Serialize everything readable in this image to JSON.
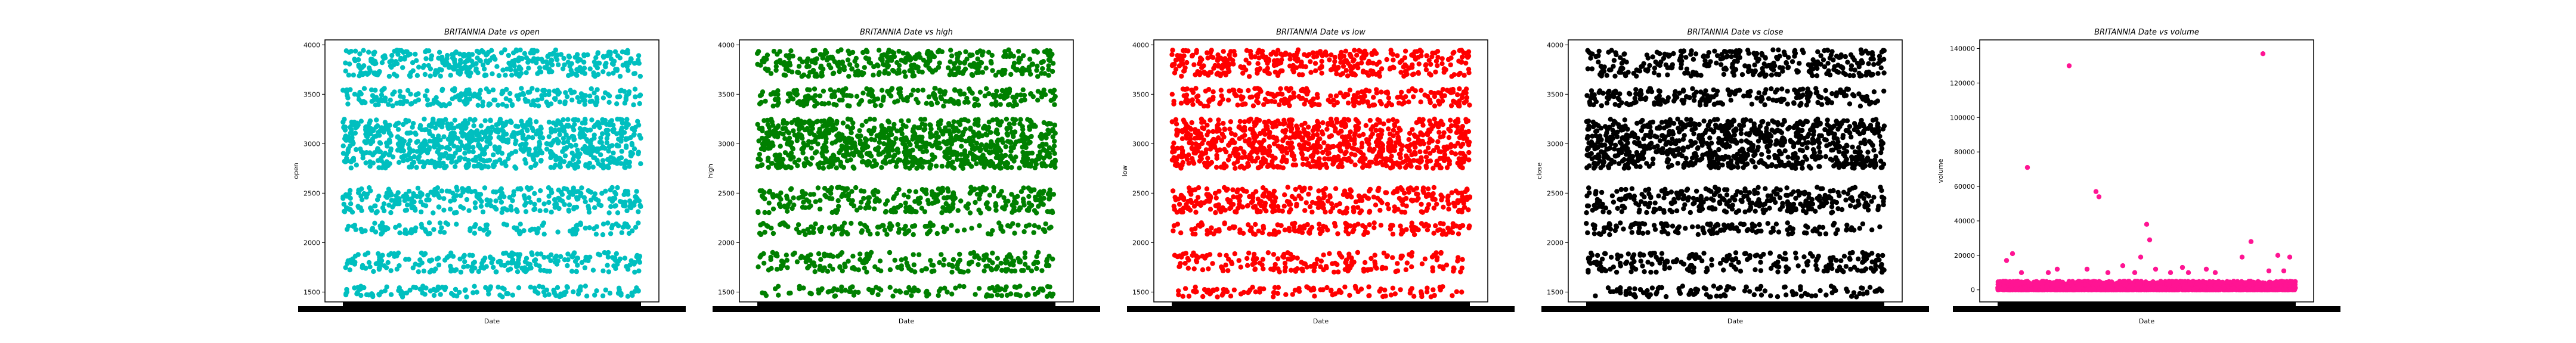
{
  "figure": {
    "stock": "BRITANNIA",
    "marker_color_note": "per panel"
  },
  "chart_data": [
    {
      "type": "scatter",
      "title": "BRITANNIA Date vs open",
      "xlabel": "Date",
      "ylabel": "open",
      "ylim": [
        1400,
        4050
      ],
      "yticks": [
        1500,
        2000,
        2500,
        3000,
        3500,
        4000
      ],
      "color": "#00bfbf",
      "n_points": 2200,
      "x_note": "dates (categorical, unlabeled)",
      "bands": [
        {
          "min": 1450,
          "max": 1560,
          "weight": 0.05
        },
        {
          "min": 1700,
          "max": 1900,
          "weight": 0.1
        },
        {
          "min": 2080,
          "max": 2200,
          "weight": 0.06
        },
        {
          "min": 2300,
          "max": 2560,
          "weight": 0.15
        },
        {
          "min": 2750,
          "max": 3250,
          "weight": 0.38
        },
        {
          "min": 3380,
          "max": 3560,
          "weight": 0.1
        },
        {
          "min": 3680,
          "max": 3950,
          "weight": 0.16
        }
      ]
    },
    {
      "type": "scatter",
      "title": "BRITANNIA Date vs high",
      "xlabel": "Date",
      "ylabel": "high",
      "ylim": [
        1400,
        4050
      ],
      "yticks": [
        1500,
        2000,
        2500,
        3000,
        3500,
        4000
      ],
      "color": "#008000",
      "n_points": 2200,
      "x_note": "dates (categorical, unlabeled)",
      "bands": [
        {
          "min": 1450,
          "max": 1560,
          "weight": 0.05
        },
        {
          "min": 1700,
          "max": 1900,
          "weight": 0.1
        },
        {
          "min": 2080,
          "max": 2200,
          "weight": 0.06
        },
        {
          "min": 2300,
          "max": 2560,
          "weight": 0.15
        },
        {
          "min": 2750,
          "max": 3250,
          "weight": 0.38
        },
        {
          "min": 3380,
          "max": 3560,
          "weight": 0.1
        },
        {
          "min": 3680,
          "max": 3950,
          "weight": 0.16
        }
      ]
    },
    {
      "type": "scatter",
      "title": "BRITANNIA Date vs low",
      "xlabel": "Date",
      "ylabel": "low",
      "ylim": [
        1400,
        4050
      ],
      "yticks": [
        1500,
        2000,
        2500,
        3000,
        3500,
        4000
      ],
      "color": "#ff0000",
      "n_points": 2200,
      "x_note": "dates (categorical, unlabeled)",
      "bands": [
        {
          "min": 1450,
          "max": 1560,
          "weight": 0.05
        },
        {
          "min": 1700,
          "max": 1900,
          "weight": 0.1
        },
        {
          "min": 2080,
          "max": 2200,
          "weight": 0.06
        },
        {
          "min": 2300,
          "max": 2560,
          "weight": 0.15
        },
        {
          "min": 2750,
          "max": 3250,
          "weight": 0.38
        },
        {
          "min": 3380,
          "max": 3560,
          "weight": 0.1
        },
        {
          "min": 3680,
          "max": 3950,
          "weight": 0.16
        }
      ]
    },
    {
      "type": "scatter",
      "title": "BRITANNIA Date vs close",
      "xlabel": "Date",
      "ylabel": "close",
      "ylim": [
        1400,
        4050
      ],
      "yticks": [
        1500,
        2000,
        2500,
        3000,
        3500,
        4000
      ],
      "color": "#000000",
      "n_points": 2200,
      "x_note": "dates (categorical, unlabeled)",
      "bands": [
        {
          "min": 1450,
          "max": 1560,
          "weight": 0.05
        },
        {
          "min": 1700,
          "max": 1900,
          "weight": 0.1
        },
        {
          "min": 2080,
          "max": 2200,
          "weight": 0.06
        },
        {
          "min": 2300,
          "max": 2560,
          "weight": 0.15
        },
        {
          "min": 2750,
          "max": 3250,
          "weight": 0.38
        },
        {
          "min": 3380,
          "max": 3560,
          "weight": 0.1
        },
        {
          "min": 3680,
          "max": 3950,
          "weight": 0.16
        }
      ]
    },
    {
      "type": "scatter",
      "title": "BRITANNIA Date vs volume",
      "xlabel": "Date",
      "ylabel": "volume",
      "ylim": [
        -7000,
        145000
      ],
      "yticks": [
        0,
        20000,
        40000,
        60000,
        80000,
        100000,
        120000,
        140000
      ],
      "color": "#ff1493",
      "n_points": 2200,
      "x_note": "dates (categorical, unlabeled)",
      "base_range": [
        0,
        5000
      ],
      "outliers": [
        {
          "x": 0.03,
          "y": 17000
        },
        {
          "x": 0.05,
          "y": 21000
        },
        {
          "x": 0.08,
          "y": 10000
        },
        {
          "x": 0.1,
          "y": 71000
        },
        {
          "x": 0.17,
          "y": 10000
        },
        {
          "x": 0.2,
          "y": 12000
        },
        {
          "x": 0.24,
          "y": 130000
        },
        {
          "x": 0.3,
          "y": 12000
        },
        {
          "x": 0.33,
          "y": 57000
        },
        {
          "x": 0.34,
          "y": 54000
        },
        {
          "x": 0.37,
          "y": 10000
        },
        {
          "x": 0.42,
          "y": 14000
        },
        {
          "x": 0.46,
          "y": 10000
        },
        {
          "x": 0.48,
          "y": 19000
        },
        {
          "x": 0.5,
          "y": 38000
        },
        {
          "x": 0.51,
          "y": 29000
        },
        {
          "x": 0.53,
          "y": 12000
        },
        {
          "x": 0.58,
          "y": 10000
        },
        {
          "x": 0.62,
          "y": 13000
        },
        {
          "x": 0.64,
          "y": 10000
        },
        {
          "x": 0.7,
          "y": 12000
        },
        {
          "x": 0.73,
          "y": 10000
        },
        {
          "x": 0.82,
          "y": 19000
        },
        {
          "x": 0.85,
          "y": 28000
        },
        {
          "x": 0.89,
          "y": 137000
        },
        {
          "x": 0.91,
          "y": 11000
        },
        {
          "x": 0.94,
          "y": 20000
        },
        {
          "x": 0.96,
          "y": 11000
        },
        {
          "x": 0.98,
          "y": 19000
        }
      ]
    }
  ]
}
